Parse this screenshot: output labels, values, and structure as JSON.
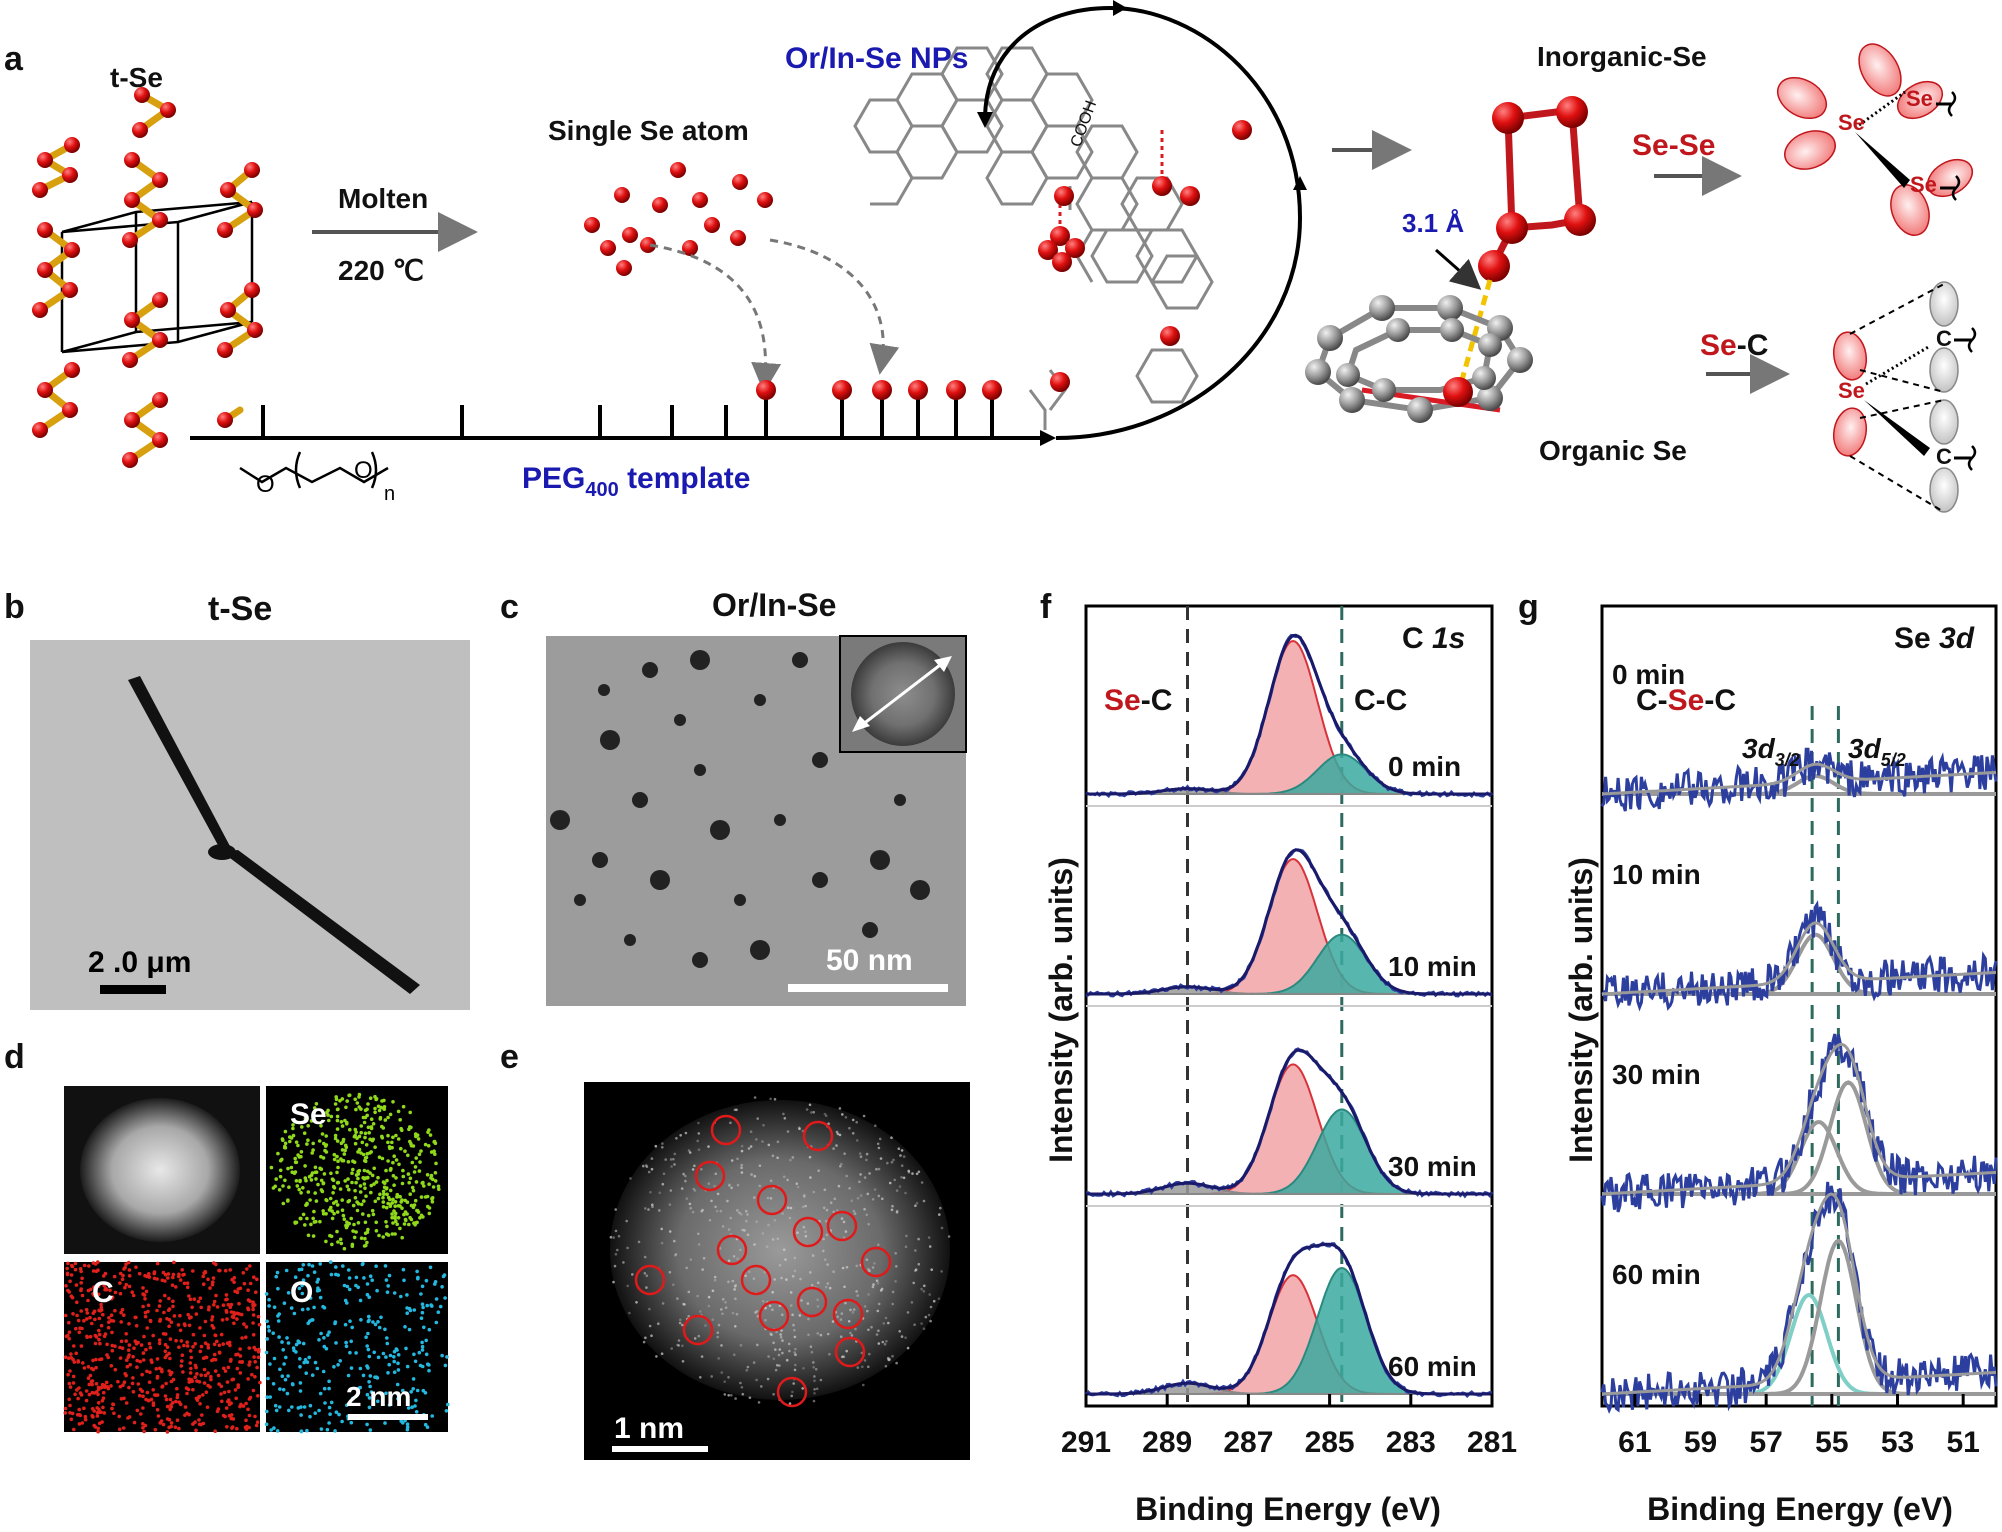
{
  "panel_letters": [
    "a",
    "b",
    "c",
    "d",
    "e",
    "f",
    "g"
  ],
  "scheme": {
    "tse_label": "t-Se",
    "molten_label": "Molten",
    "temp_label": "220 ℃",
    "single_atom_label": "Single Se atom",
    "peg_label": "PEG",
    "peg_sub": "400",
    "peg_suffix": " template",
    "peg_formula_o1": "O",
    "peg_formula_o2": "O",
    "peg_formula_n": "n",
    "nps_label": "Or/In-Se NPs",
    "cooh_label": "COOH",
    "inorganic_label": "Inorganic-Se",
    "organic_label": "Organic Se",
    "distance_label": "3.1 Å",
    "sese_label_a": "Se",
    "sese_label_b": "-Se",
    "sec_label_a": "Se",
    "sec_label_b": "-C",
    "atom_se": "Se",
    "atom_c": "C"
  },
  "panel_b": {
    "title": "t-Se",
    "scalebar": "2 .0 μm"
  },
  "panel_c": {
    "title": "Or/In-Se",
    "scalebar": "50 nm"
  },
  "panel_d": {
    "se": "Se",
    "c": "C",
    "o": "O",
    "scalebar": "2 nm"
  },
  "panel_e": {
    "scalebar": "1 nm"
  },
  "panel_f": {
    "corner_label_a": "C ",
    "corner_label_b": "1s",
    "sec_a": "Se",
    "sec_b": "-C",
    "cc": "C-C",
    "ylabel": "Intensity (arb. units)",
    "xlabel": "Binding Energy (eV)",
    "xticks": [
      "291",
      "289",
      "287",
      "285",
      "283",
      "281"
    ],
    "times": [
      "0 min",
      "10 min",
      "30 min",
      "60 min"
    ]
  },
  "panel_g": {
    "corner_label_a": "Se ",
    "corner_label_b": "3d",
    "csec_a": "C-",
    "csec_b": "Se",
    "csec_c": "-C",
    "d32_a": "3d",
    "d32_b": "3/2",
    "d52_a": "3d",
    "d52_b": "5/2",
    "ylabel": "Intensity (arb. units)",
    "xlabel": "Binding Energy (eV)",
    "xticks": [
      "61",
      "59",
      "57",
      "55",
      "53",
      "51"
    ],
    "times": [
      "0 min",
      "10 min",
      "30 min",
      "60 min"
    ]
  },
  "chart_data": [
    {
      "type": "line",
      "panel": "f",
      "x_range": [
        291,
        281
      ],
      "xticks": [
        291,
        289,
        287,
        285,
        283,
        281
      ],
      "reference_lines": [
        288.5,
        284.7
      ],
      "series": [
        {
          "name": "0 min",
          "peaks": [
            {
              "center": 285.9,
              "height": 0.85,
              "color": "#f2a3a6"
            },
            {
              "center": 284.7,
              "height": 0.22,
              "color": "#3aa99f"
            },
            {
              "center": 288.5,
              "height": 0.03,
              "color": "#9a9a9a"
            }
          ]
        },
        {
          "name": "10 min",
          "peaks": [
            {
              "center": 285.9,
              "height": 0.75,
              "color": "#f2a3a6"
            },
            {
              "center": 284.7,
              "height": 0.33,
              "color": "#3aa99f"
            },
            {
              "center": 288.5,
              "height": 0.04,
              "color": "#9a9a9a"
            }
          ]
        },
        {
          "name": "30 min",
          "peaks": [
            {
              "center": 285.9,
              "height": 0.72,
              "color": "#f2a3a6"
            },
            {
              "center": 284.7,
              "height": 0.47,
              "color": "#3aa99f"
            },
            {
              "center": 288.5,
              "height": 0.06,
              "color": "#9a9a9a"
            }
          ]
        },
        {
          "name": "60 min",
          "peaks": [
            {
              "center": 285.9,
              "height": 0.66,
              "color": "#f2a3a6"
            },
            {
              "center": 284.7,
              "height": 0.7,
              "color": "#3aa99f"
            },
            {
              "center": 288.5,
              "height": 0.06,
              "color": "#9a9a9a"
            }
          ]
        }
      ]
    },
    {
      "type": "line",
      "panel": "g",
      "x_range": [
        62,
        50
      ],
      "xticks": [
        61,
        59,
        57,
        55,
        53,
        51
      ],
      "reference_lines": [
        55.6,
        54.8
      ],
      "series": [
        {
          "name": "0 min",
          "peaks": [
            {
              "center": 55.5,
              "height": 0.1,
              "color": "#9a9a9a"
            }
          ]
        },
        {
          "name": "10 min",
          "peaks": [
            {
              "center": 55.5,
              "height": 0.33,
              "color": "#9a9a9a"
            }
          ]
        },
        {
          "name": "30 min",
          "peaks": [
            {
              "center": 55.4,
              "height": 0.4,
              "color": "#9a9a9a"
            },
            {
              "center": 54.5,
              "height": 0.62,
              "color": "#9a9a9a"
            }
          ]
        },
        {
          "name": "60 min",
          "peaks": [
            {
              "center": 55.7,
              "height": 0.55,
              "color": "#7fcfc6"
            },
            {
              "center": 54.8,
              "height": 0.85,
              "color": "#9a9a9a"
            }
          ]
        }
      ]
    }
  ]
}
